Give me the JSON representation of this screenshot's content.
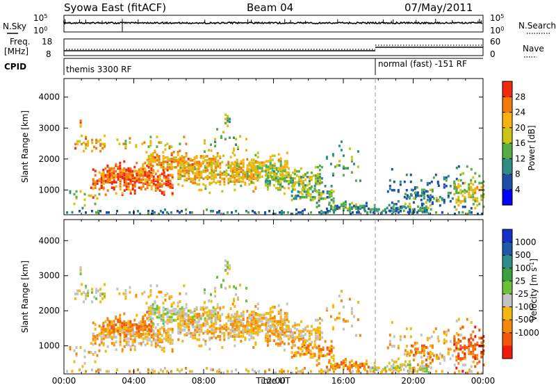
{
  "header": {
    "station": "Syowa East (fitACF)",
    "beam": "Beam 04",
    "date": "07/May/2011"
  },
  "top_panels": {
    "nsky_label": "N.Sky",
    "nsky_tick_top": "10^5",
    "nsky_tick_bottom": "10^0",
    "nsearch_label": "N.Search",
    "nsearch_tick_top": "10^5",
    "nsearch_tick_bottom": "10^0",
    "freq_label_line1": "Freq.",
    "freq_label_line2": "[MHz]",
    "freq_tick_top": "18",
    "freq_tick_bottom": "8",
    "nave_label": "Nave",
    "nave_tick_top": "60",
    "nave_tick_bottom": "0",
    "cpid_label": "CPID",
    "cpid_segments": [
      {
        "label": "themis 3300 RF",
        "start_hour": 0
      },
      {
        "label": "normal (fast) -151 RF",
        "start_hour": 18
      }
    ]
  },
  "chart_data": [
    {
      "type": "heatmap",
      "panel": "power",
      "ylabel": "Slant Range [km]",
      "yticks": [
        1000,
        2000,
        3000,
        4000
      ],
      "ylim": [
        200,
        4600
      ],
      "xlim": [
        0,
        24
      ],
      "colorbar": {
        "label": "Power [dB]",
        "ticks": [
          "4",
          "8",
          "12",
          "16",
          "20",
          "24",
          "28"
        ],
        "range": [
          0,
          32
        ],
        "colors": [
          "#0000ff",
          "#1e4fa8",
          "#2e8c86",
          "#56ad46",
          "#c9c416",
          "#f7b212",
          "#f47a0e",
          "#ef2a0d"
        ]
      }
    },
    {
      "type": "heatmap",
      "panel": "velocity",
      "ylabel": "Slant Range [km]",
      "yticks": [
        1000,
        2000,
        3000,
        4000
      ],
      "ylim": [
        200,
        4600
      ],
      "xlim": [
        0,
        24
      ],
      "xlabel": "Time UT",
      "xticks": [
        "00:00",
        "04:00",
        "08:00",
        "12:00",
        "16:00",
        "20:00",
        "00:00"
      ],
      "colorbar": {
        "label": "Velocity [m s^-1]",
        "ticks": [
          "1000",
          "500",
          "100",
          "25",
          "-25",
          "-100",
          "-500",
          "-1000"
        ],
        "colors": [
          "#1431c8",
          "#1e5aa6",
          "#2e8c8a",
          "#3aa040",
          "#69c23a",
          "#c3c3c3",
          "#f4b810",
          "#f4880c",
          "#f0580c",
          "#ee1a0c"
        ]
      }
    }
  ]
}
